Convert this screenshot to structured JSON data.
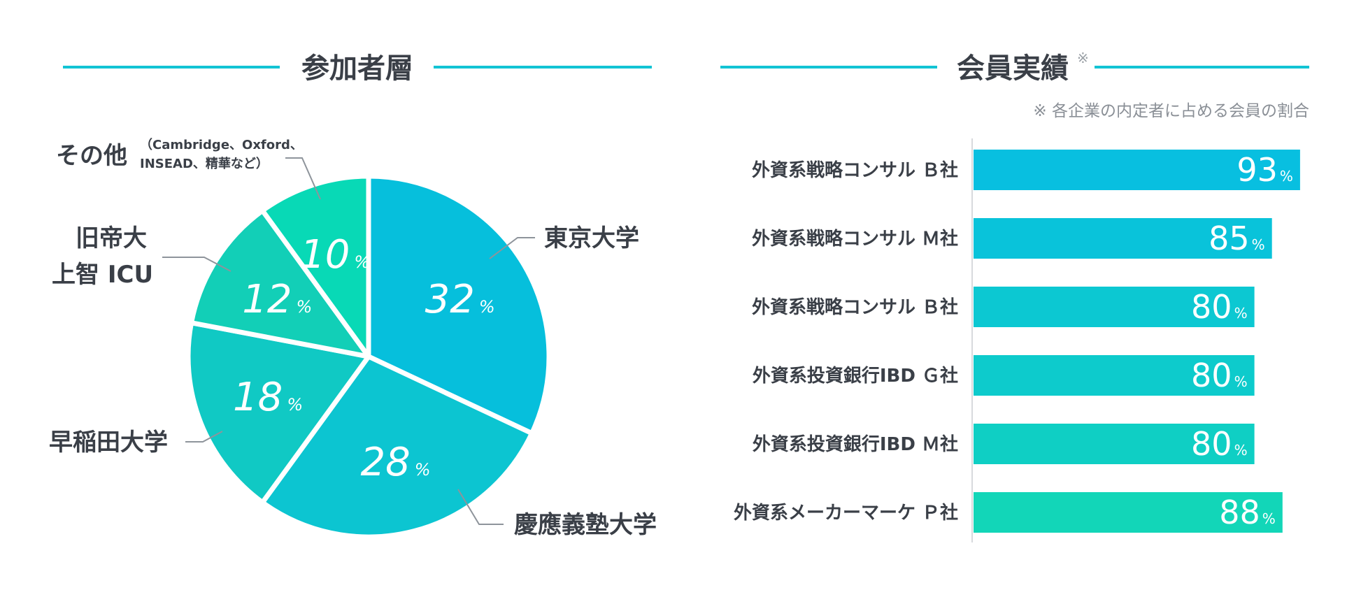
{
  "pie_section": {
    "title": "参加者層"
  },
  "bar_section": {
    "title": "会員実績",
    "title_mark": "※",
    "note": "※ 各企業の内定者に占める会員の割合"
  },
  "chart_data": [
    {
      "type": "pie",
      "title": "参加者層",
      "categories": [
        "東京大学",
        "慶應義塾大学",
        "早稲田大学",
        "旧帝大 上智 ICU",
        "その他"
      ],
      "values": [
        32,
        28,
        18,
        12,
        10
      ],
      "value_suffix": "%",
      "labels": {
        "tokyo": "東京大学",
        "keio": "慶應義塾大学",
        "waseda": "早稲田大学",
        "kyutei_line1": "旧帝大",
        "kyutei_line2": "上智 ICU",
        "other": "その他",
        "other_note_line1": "（Cambridge、Oxford、",
        "other_note_line2": "INSEAD、精華など）"
      },
      "colors": [
        "#06bfdc",
        "#0cc5d1",
        "#10c9c4",
        "#12cfb7",
        "#08d9b6"
      ]
    },
    {
      "type": "bar",
      "orientation": "horizontal",
      "title": "会員実績",
      "categories": [
        "外資系戦略コンサル Ｂ社",
        "外資系戦略コンサル Ｍ社",
        "外資系戦略コンサル Ｂ社",
        "外資系投資銀行IBD Ｇ社",
        "外資系投資銀行IBD Ｍ社",
        "外資系メーカーマーケ Ｐ社"
      ],
      "values": [
        93,
        85,
        80,
        80,
        80,
        88
      ],
      "value_suffix": "%",
      "xlim": [
        0,
        100
      ],
      "colors": [
        "#08bfe0",
        "#09c3da",
        "#0cc8d2",
        "#0dcbcc",
        "#0fcfc4",
        "#12d6b8"
      ]
    }
  ]
}
